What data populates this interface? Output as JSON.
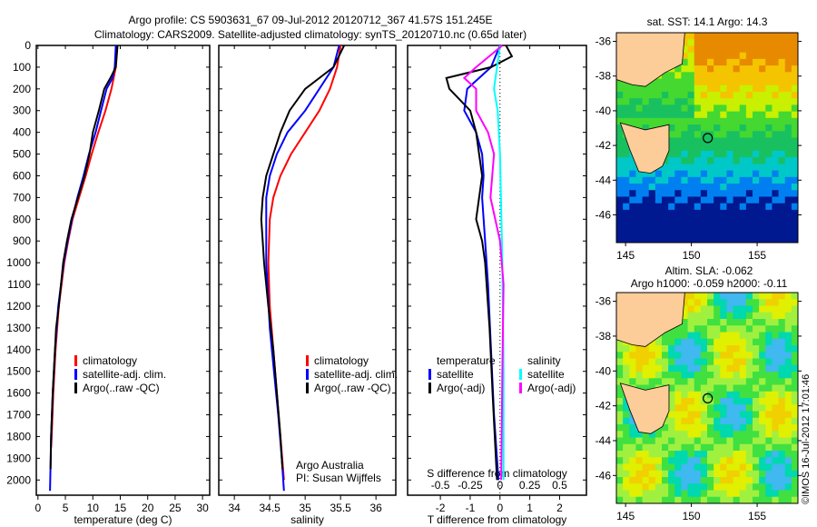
{
  "title_line1": "Argo profile: CS 5903631_67 09-Jul-2012 20120712_367 41.57S 151.245E",
  "title_line2": "Climatology: CARS2009. Satellite-adjusted climatology: synTS_20120710.nc (0.65d later)",
  "watermark": "©IMOS 16-Jul-2012 17:01:46",
  "colors": {
    "clim": "#ff0000",
    "sat": "#0000ff",
    "argo": "#000000",
    "sal_sat": "#00ffff",
    "sal_argo": "#ff00ff"
  },
  "chart_data": [
    {
      "type": "line",
      "xlabel": "temperature (deg C)",
      "xlim": [
        -0.3,
        31.3
      ],
      "ylim": [
        2070,
        0
      ],
      "xticks": [
        "0",
        "5",
        "10",
        "15",
        "20",
        "25",
        "30"
      ],
      "xtick_values": [
        0,
        5,
        10,
        15,
        20,
        25,
        30
      ],
      "yticks": [
        "0",
        "100",
        "200",
        "300",
        "400",
        "500",
        "600",
        "700",
        "800",
        "900",
        "1000",
        "1100",
        "1200",
        "1300",
        "1400",
        "1500",
        "1600",
        "1700",
        "1800",
        "1900",
        "2000"
      ],
      "legend": [
        "climatology",
        "satellite-adj. clim.",
        "Argo(..raw -QC)"
      ],
      "series": [
        {
          "name": "climatology",
          "color": "clim",
          "depth": [
            0,
            100,
            200,
            300,
            400,
            500,
            600,
            700,
            800,
            900,
            1000,
            1200,
            1400,
            1600,
            1800,
            1850
          ],
          "values": [
            14.3,
            14.2,
            13.4,
            12.3,
            11,
            9.8,
            8.7,
            7.5,
            6.3,
            5.5,
            4.8,
            3.8,
            3.2,
            2.8,
            2.5,
            2.4
          ]
        },
        {
          "name": "satellite-adj. clim.",
          "color": "sat",
          "depth": [
            0,
            100,
            150,
            200,
            300,
            400,
            500,
            600,
            700,
            800,
            900,
            1000,
            1200,
            1400,
            1600,
            1800,
            2050
          ],
          "values": [
            14.2,
            14.0,
            13.6,
            12.5,
            11.5,
            10.5,
            9.3,
            8.3,
            7.2,
            6.2,
            5.4,
            4.7,
            3.7,
            3.1,
            2.7,
            2.4,
            2.2
          ]
        },
        {
          "name": "Argo(..raw -QC)",
          "color": "argo",
          "depth": [
            0,
            100,
            150,
            200,
            300,
            400,
            500,
            600,
            700,
            800,
            900,
            1000,
            1200,
            1300,
            1400,
            1600,
            1800,
            1950
          ],
          "values": [
            14.5,
            14.2,
            13.2,
            12.1,
            11.1,
            10,
            9.4,
            8.5,
            7.3,
            6.1,
            5.3,
            4.6,
            3.8,
            3.3,
            3.1,
            2.7,
            2.4,
            2.3
          ]
        }
      ]
    },
    {
      "type": "line",
      "xlabel": "salinity",
      "xlim": [
        33.78,
        36.28
      ],
      "ylim": [
        2070,
        0
      ],
      "xticks": [
        "34",
        "34.5",
        "35",
        "35.5",
        "36"
      ],
      "xtick_values": [
        34,
        34.5,
        35,
        35.5,
        36
      ],
      "legend": [
        "climatology",
        "satellite-adj. clim.",
        "Argo(..raw -QC)"
      ],
      "annotation": [
        "Argo Australia",
        "PI: Susan Wijffels"
      ],
      "series": [
        {
          "name": "climatology",
          "color": "clim",
          "depth": [
            0,
            100,
            200,
            300,
            400,
            500,
            600,
            700,
            800,
            1000,
            1200,
            1400,
            1600,
            1800,
            2000
          ],
          "values": [
            35.5,
            35.45,
            35.35,
            35.2,
            35.0,
            34.8,
            34.65,
            34.55,
            34.5,
            34.48,
            34.5,
            34.55,
            34.6,
            34.65,
            34.7
          ]
        },
        {
          "name": "satellite-adj. clim.",
          "color": "sat",
          "depth": [
            0,
            100,
            200,
            300,
            400,
            500,
            600,
            700,
            800,
            1000,
            1300,
            1500,
            1700,
            1900,
            2050
          ],
          "values": [
            35.48,
            35.4,
            35.2,
            35.0,
            34.75,
            34.6,
            34.5,
            34.45,
            34.45,
            34.45,
            34.5,
            34.56,
            34.62,
            34.67,
            34.7
          ]
        },
        {
          "name": "Argo(..raw -QC)",
          "color": "argo",
          "depth": [
            0,
            100,
            200,
            300,
            400,
            500,
            600,
            700,
            800,
            900,
            1000,
            1200,
            1400,
            1600,
            1800,
            1950
          ],
          "values": [
            35.55,
            35.4,
            35.0,
            34.78,
            34.65,
            34.55,
            34.45,
            34.4,
            34.38,
            34.4,
            34.42,
            34.48,
            34.55,
            34.6,
            34.65,
            34.68
          ]
        }
      ]
    },
    {
      "type": "line",
      "xlabel": "T difference from climatology",
      "xlabel2": "S difference from climatology",
      "xlim": [
        -3.1,
        2.9
      ],
      "ylim": [
        2070,
        0
      ],
      "xticks": [
        "-2",
        "-1",
        "0",
        "1",
        "2"
      ],
      "xtick_values": [
        -2,
        -1,
        0,
        1,
        2
      ],
      "sticks": [
        "-0.5",
        "-0.25",
        "0",
        "0.25",
        "0.5"
      ],
      "stick_values": [
        -0.5,
        -0.25,
        0,
        0.25,
        0.5
      ],
      "legend_temp": [
        "temperature",
        "satellite",
        "Argo(-adj)"
      ],
      "legend_sal": [
        "salinity",
        "satellite",
        "Argo(-adj)"
      ],
      "series": [
        {
          "name": "T satellite",
          "color": "sat",
          "unit": "T",
          "depth": [
            0,
            100,
            200,
            300,
            400,
            500,
            600,
            700,
            900,
            1100,
            1400,
            1700,
            2000
          ],
          "values": [
            0,
            -0.3,
            -1.1,
            -1.2,
            -0.8,
            -0.6,
            -0.55,
            -0.6,
            -0.5,
            -0.4,
            -0.3,
            -0.2,
            -0.05
          ]
        },
        {
          "name": "T Argo(-adj)",
          "color": "argo",
          "unit": "T",
          "depth": [
            0,
            50,
            100,
            150,
            200,
            300,
            400,
            500,
            600,
            700,
            800,
            900,
            1000,
            1300,
            1600,
            2000
          ],
          "values": [
            0.2,
            0.4,
            -0.3,
            -1.8,
            -1.7,
            -1.0,
            -0.8,
            -0.7,
            -0.6,
            -0.7,
            -0.8,
            -0.6,
            -0.5,
            -0.35,
            -0.25,
            -0.1
          ]
        },
        {
          "name": "S satellite",
          "color": "sal_sat",
          "unit": "S",
          "depth": [
            0,
            200,
            300,
            500,
            1000,
            1500,
            2000
          ],
          "values": [
            0,
            -0.05,
            -0.02,
            0,
            0.02,
            0.03,
            0.03
          ]
        },
        {
          "name": "S Argo(-adj)",
          "color": "sal_argo",
          "unit": "S",
          "depth": [
            0,
            100,
            150,
            200,
            300,
            400,
            500,
            700,
            900,
            1100,
            1500,
            2000
          ],
          "values": [
            0.02,
            -0.2,
            -0.3,
            -0.2,
            -0.2,
            -0.1,
            -0.05,
            -0.08,
            0,
            0.03,
            0.02,
            0.01
          ]
        }
      ]
    }
  ],
  "maps": [
    {
      "title": "sat. SST: 14.1 Argo: 14.3",
      "lat_ticks": [
        "-36",
        "-38",
        "-40",
        "-42",
        "-44",
        "-46"
      ],
      "lon_ticks": [
        "145",
        "150",
        "155"
      ]
    },
    {
      "title1": "Altim. SLA: -0.062",
      "title2": "Argo h1000: -0.059 h2000: -0.11",
      "lat_ticks": [
        "-36",
        "-38",
        "-40",
        "-42",
        "-44",
        "-46"
      ],
      "lon_ticks": [
        "145",
        "150",
        "155"
      ]
    }
  ]
}
